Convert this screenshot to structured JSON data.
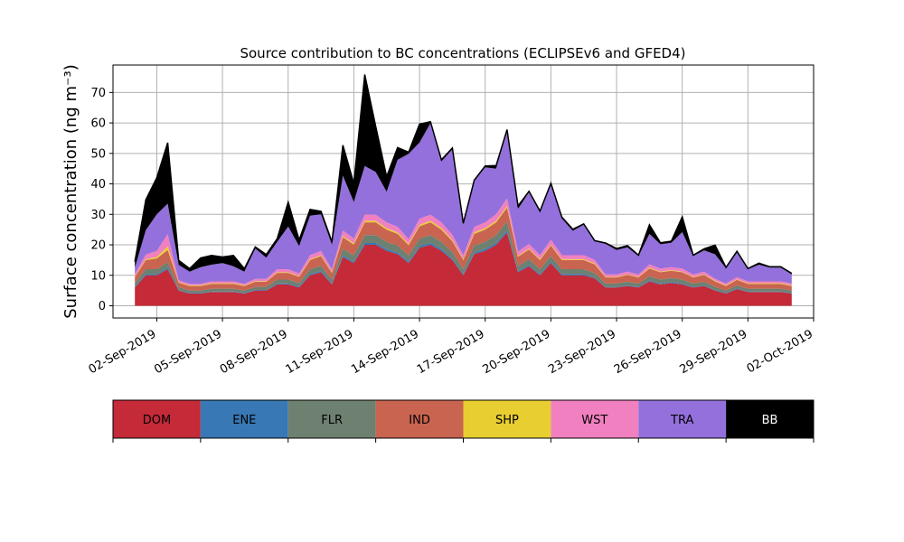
{
  "chart_data": {
    "type": "area",
    "stacked": true,
    "title": "Source contribution to BC concentrations (ECLIPSEv6 and GFED4)",
    "xlabel": "",
    "ylabel": "Surface concentration (ng m⁻³)",
    "ylim": [
      -4,
      79
    ],
    "yticks": [
      0,
      10,
      20,
      30,
      40,
      50,
      60,
      70
    ],
    "xlim": [
      "2019-08-31",
      "2019-10-02"
    ],
    "xticks": [
      "02-Sep-2019",
      "05-Sep-2019",
      "08-Sep-2019",
      "11-Sep-2019",
      "14-Sep-2019",
      "17-Sep-2019",
      "20-Sep-2019",
      "23-Sep-2019",
      "26-Sep-2019",
      "29-Sep-2019",
      "02-Oct-2019"
    ],
    "xtick_dates": [
      "2019-09-02",
      "2019-09-05",
      "2019-09-08",
      "2019-09-11",
      "2019-09-14",
      "2019-09-17",
      "2019-09-20",
      "2019-09-23",
      "2019-09-26",
      "2019-09-29",
      "2019-10-02"
    ],
    "grid": true,
    "x": [
      "2019-09-01",
      "2019-09-01T12:00",
      "2019-09-02",
      "2019-09-02T12:00",
      "2019-09-03",
      "2019-09-03T12:00",
      "2019-09-04",
      "2019-09-04T12:00",
      "2019-09-05",
      "2019-09-05T12:00",
      "2019-09-06",
      "2019-09-06T12:00",
      "2019-09-07",
      "2019-09-07T12:00",
      "2019-09-08",
      "2019-09-08T12:00",
      "2019-09-09",
      "2019-09-09T12:00",
      "2019-09-10",
      "2019-09-10T12:00",
      "2019-09-11",
      "2019-09-11T12:00",
      "2019-09-12",
      "2019-09-12T12:00",
      "2019-09-13",
      "2019-09-13T12:00",
      "2019-09-14",
      "2019-09-14T12:00",
      "2019-09-15",
      "2019-09-15T12:00",
      "2019-09-16",
      "2019-09-16T12:00",
      "2019-09-17",
      "2019-09-17T12:00",
      "2019-09-18",
      "2019-09-18T12:00",
      "2019-09-19",
      "2019-09-19T12:00",
      "2019-09-20",
      "2019-09-20T12:00",
      "2019-09-21",
      "2019-09-21T12:00",
      "2019-09-22",
      "2019-09-22T12:00",
      "2019-09-23",
      "2019-09-23T12:00",
      "2019-09-24",
      "2019-09-24T12:00",
      "2019-09-25",
      "2019-09-25T12:00",
      "2019-09-26",
      "2019-09-26T12:00",
      "2019-09-27",
      "2019-09-27T12:00",
      "2019-09-28",
      "2019-09-28T12:00",
      "2019-09-29",
      "2019-09-29T12:00",
      "2019-09-30",
      "2019-09-30T12:00",
      "2019-10-01"
    ],
    "series": [
      {
        "name": "DOM",
        "color": "#c42a38",
        "values": [
          6,
          10,
          10,
          12,
          5,
          4,
          4,
          4.5,
          4.5,
          4.5,
          4,
          5,
          5,
          7,
          7,
          6,
          10,
          11,
          7,
          16,
          14,
          20,
          20,
          18,
          17,
          14,
          19,
          20,
          18,
          15,
          10,
          17,
          18,
          20,
          24,
          11,
          13,
          10,
          14,
          10,
          10,
          10,
          9,
          6,
          6,
          6.5,
          6,
          8,
          7,
          7.5,
          7,
          6,
          6.5,
          5,
          4,
          5.5,
          4.5,
          4.5,
          4.5,
          4.5,
          4
        ]
      },
      {
        "name": "ENE",
        "color": "#3878b4",
        "values": [
          0.3,
          0.4,
          0.4,
          0.5,
          0.2,
          0.2,
          0.2,
          0.2,
          0.2,
          0.2,
          0.2,
          0.2,
          0.2,
          0.3,
          0.3,
          0.3,
          0.4,
          0.4,
          0.3,
          0.5,
          0.5,
          0.6,
          0.6,
          0.6,
          0.5,
          0.5,
          0.6,
          0.6,
          0.6,
          0.5,
          0.4,
          0.5,
          0.6,
          0.6,
          0.7,
          0.4,
          0.4,
          0.4,
          0.4,
          0.4,
          0.4,
          0.4,
          0.3,
          0.2,
          0.2,
          0.2,
          0.2,
          0.3,
          0.3,
          0.3,
          0.3,
          0.2,
          0.2,
          0.2,
          0.2,
          0.2,
          0.2,
          0.2,
          0.2,
          0.2,
          0.2
        ]
      },
      {
        "name": "FLR",
        "color": "#6e8070",
        "values": [
          1.2,
          1.6,
          1.6,
          1.8,
          0.9,
          0.8,
          0.8,
          0.9,
          0.9,
          0.9,
          0.8,
          1,
          1,
          1.3,
          1.3,
          1.2,
          1.6,
          1.7,
          1.3,
          2.2,
          2,
          2.6,
          2.6,
          2.4,
          2.3,
          2,
          2.5,
          2.6,
          2.4,
          2.1,
          1.6,
          2.3,
          2.4,
          2.6,
          3,
          1.7,
          1.9,
          1.6,
          2,
          1.6,
          1.6,
          1.6,
          1.5,
          1.1,
          1.1,
          1.2,
          1.1,
          1.4,
          1.3,
          1.3,
          1.3,
          1.1,
          1.2,
          1,
          0.8,
          1,
          0.9,
          0.9,
          0.9,
          0.9,
          0.8
        ]
      },
      {
        "name": "IND",
        "color": "#c86450",
        "values": [
          2,
          3,
          3.5,
          4,
          1.5,
          1.5,
          1.5,
          1.6,
          1.6,
          1.6,
          1.5,
          1.7,
          1.7,
          2.2,
          2.2,
          2,
          3,
          3.2,
          2.2,
          3.8,
          3.6,
          4.2,
          4.2,
          4,
          3.8,
          3.4,
          4,
          4.2,
          4,
          3.6,
          3,
          3.8,
          4,
          4.2,
          4.5,
          3,
          3.2,
          3,
          3.4,
          3,
          3,
          3,
          2.8,
          2,
          2,
          2.2,
          2,
          2.5,
          2.4,
          2.4,
          2.4,
          2,
          2.2,
          1.8,
          1.5,
          1.8,
          1.6,
          1.6,
          1.6,
          1.6,
          1.5
        ]
      },
      {
        "name": "SHP",
        "color": "#e8ce30",
        "values": [
          0.2,
          0.3,
          0.5,
          1.2,
          0.2,
          0.2,
          0.2,
          0.2,
          0.2,
          0.2,
          0.2,
          0.2,
          0.2,
          0.2,
          0.2,
          0.2,
          0.3,
          0.3,
          0.2,
          0.4,
          0.4,
          0.5,
          0.5,
          0.5,
          0.5,
          0.4,
          0.5,
          0.5,
          0.5,
          0.4,
          0.3,
          0.5,
          0.5,
          0.5,
          0.6,
          0.3,
          0.3,
          0.3,
          0.3,
          0.3,
          0.3,
          0.3,
          0.3,
          0.2,
          0.2,
          0.2,
          0.2,
          0.3,
          0.2,
          0.2,
          0.2,
          0.2,
          0.2,
          0.2,
          0.2,
          0.2,
          0.2,
          0.2,
          0.2,
          0.2,
          0.2
        ]
      },
      {
        "name": "WST",
        "color": "#f080c0",
        "values": [
          0.8,
          1.5,
          2,
          4,
          0.6,
          0.5,
          0.5,
          0.6,
          0.6,
          0.6,
          0.5,
          0.7,
          0.7,
          1,
          1,
          0.9,
          1.3,
          1.4,
          1,
          1.8,
          1.6,
          2,
          2,
          1.9,
          1.8,
          1.6,
          2,
          2,
          1.9,
          1.7,
          1.3,
          1.8,
          1.9,
          2.1,
          2.5,
          1.4,
          1.5,
          1.3,
          1.6,
          1.3,
          1.3,
          1.3,
          1.2,
          0.8,
          0.8,
          0.9,
          0.8,
          1.1,
          1,
          1,
          1,
          0.8,
          0.9,
          0.7,
          0.6,
          0.7,
          0.6,
          0.6,
          0.6,
          0.6,
          0.6
        ]
      },
      {
        "name": "TRA",
        "color": "#9370db",
        "values": [
          2,
          8,
          12,
          10,
          5,
          4,
          5.5,
          5.5,
          6,
          5,
          4,
          10,
          7,
          9,
          14,
          9,
          13,
          12,
          8,
          18,
          12,
          16,
          14,
          10,
          22,
          28,
          25,
          30,
          20,
          28,
          10,
          15,
          18,
          15,
          22,
          14,
          17,
          14,
          18,
          12,
          8,
          10,
          6,
          10,
          8,
          8,
          6,
          10,
          8,
          8,
          12,
          6,
          7,
          8,
          5,
          8,
          4,
          5.5,
          4.5,
          4.5,
          3
        ]
      },
      {
        "name": "BB",
        "color": "#000000",
        "values": [
          2,
          10,
          12,
          20,
          1.5,
          1,
          3,
          3,
          2,
          3.5,
          1,
          0.5,
          1,
          1,
          8,
          2,
          2,
          1,
          1,
          10,
          6,
          30,
          15,
          5,
          4,
          0.5,
          6,
          0.5,
          0.5,
          0.5,
          0.5,
          0.3,
          0.5,
          1,
          0.5,
          1,
          0.3,
          0.5,
          0.5,
          0.5,
          0.5,
          0.3,
          0.3,
          0.3,
          0.5,
          0.5,
          0.3,
          3,
          0.5,
          0.5,
          5,
          0.3,
          0.5,
          3,
          0.3,
          0.5,
          0.2,
          0.5,
          0.3,
          0.3,
          0.3
        ]
      }
    ],
    "legend": [
      "DOM",
      "ENE",
      "FLR",
      "IND",
      "SHP",
      "WST",
      "TRA",
      "BB"
    ],
    "legend_colors": [
      "#c42a38",
      "#3878b4",
      "#6e8070",
      "#c86450",
      "#e8ce30",
      "#f080c0",
      "#9370db",
      "#000000"
    ],
    "legend_text_colors": [
      "#000000",
      "#000000",
      "#000000",
      "#000000",
      "#000000",
      "#000000",
      "#000000",
      "#ffffff"
    ],
    "legend_placement": "bottom"
  }
}
